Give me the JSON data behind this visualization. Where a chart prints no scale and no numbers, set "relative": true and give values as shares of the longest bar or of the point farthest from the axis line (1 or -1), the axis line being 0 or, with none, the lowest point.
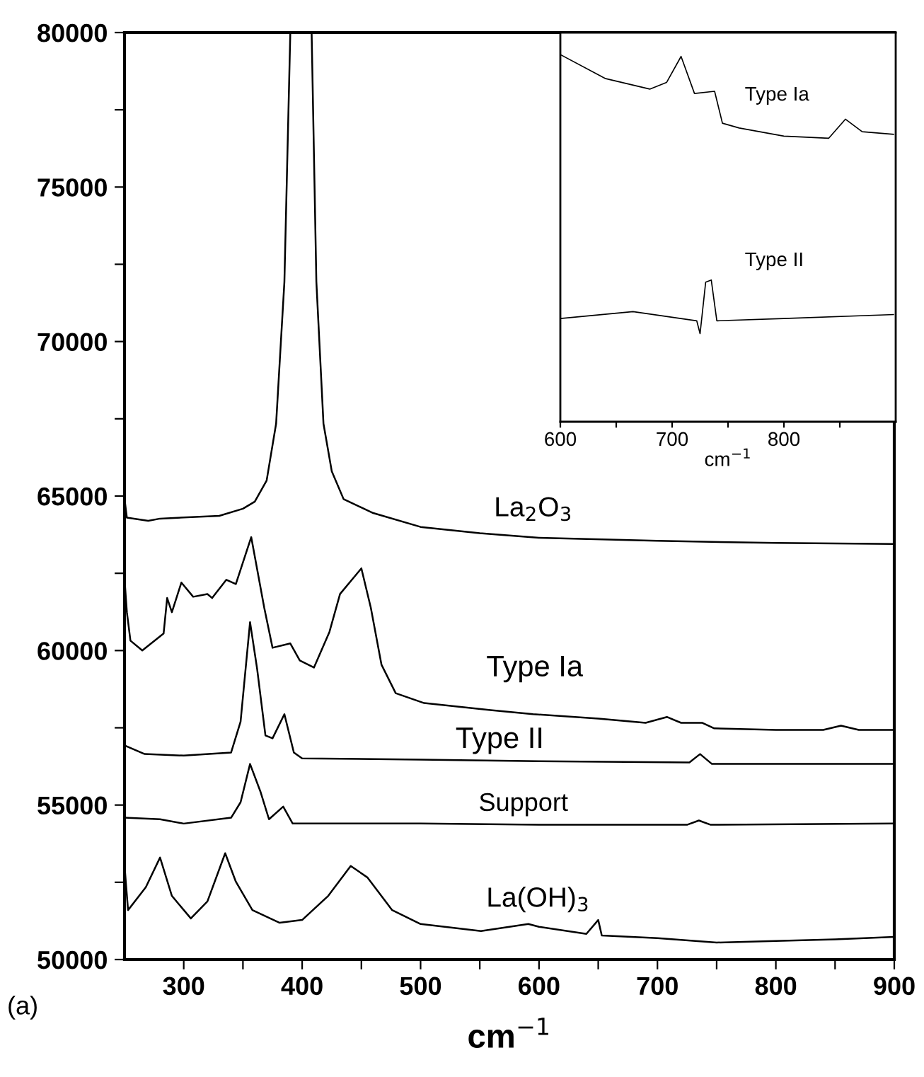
{
  "chart_data": [
    {
      "type": "line",
      "xlabel": "cm$^{−1}$",
      "annotations": [
        "(a)"
      ],
      "xlim": [
        250,
        900
      ],
      "ylim": [
        50000,
        80000
      ],
      "xticks": [
        300,
        {
          "value": 350,
          "label": null
        },
        400,
        {
          "value": 450,
          "label": null
        },
        500,
        {
          "value": 550,
          "label": null
        },
        600,
        {
          "value": 650,
          "label": null
        },
        700,
        {
          "value": 750,
          "label": null
        },
        800,
        {
          "value": 850,
          "label": null
        },
        900
      ],
      "yticks": [
        50000,
        {
          "value": 52500,
          "label": null
        },
        55000,
        {
          "value": 57500,
          "label": null
        },
        60000,
        {
          "value": 62500,
          "label": null
        },
        65000,
        {
          "value": 67500,
          "label": null
        },
        70000,
        {
          "value": 72500,
          "label": null
        },
        75000,
        {
          "value": 77500,
          "label": null
        },
        80000
      ],
      "grid": false,
      "marker": "none",
      "line_style": "solid",
      "series": [
        {
          "name": "La$_{2}$O$_{3}$",
          "color": "#000000",
          "x": [
            250,
            252,
            270,
            280,
            330,
            350,
            360,
            370,
            378,
            385,
            390,
            395,
            403,
            408,
            412,
            418,
            425,
            435,
            460,
            500,
            550,
            600,
            700,
            800,
            900
          ],
          "values": [
            64900,
            64300,
            64200,
            64270,
            64360,
            64590,
            64820,
            65500,
            67340,
            71930,
            80000,
            null,
            null,
            80000,
            71930,
            67340,
            65800,
            64900,
            64450,
            64000,
            63800,
            63650,
            63550,
            63480,
            63450
          ]
        },
        {
          "name": "Type Ia",
          "color": "#000000",
          "x": [
            250,
            252,
            255,
            265,
            283,
            286,
            290,
            298,
            308,
            320,
            324,
            336,
            344,
            357,
            368,
            375,
            390,
            398,
            410,
            423,
            432,
            450,
            458,
            467,
            479,
            503,
            559,
            595,
            650,
            690,
            708,
            720,
            738,
            748,
            800,
            840,
            855,
            870,
            900
          ],
          "values": [
            62300,
            61240,
            60320,
            60000,
            60550,
            61700,
            61240,
            62200,
            61740,
            61830,
            61700,
            62290,
            62150,
            63670,
            61380,
            60090,
            60230,
            59680,
            59450,
            60600,
            61830,
            62660,
            61380,
            59540,
            58620,
            58300,
            58070,
            57940,
            57800,
            57660,
            57850,
            57660,
            57660,
            57480,
            57430,
            57430,
            57570,
            57430,
            57430
          ]
        },
        {
          "name": "Type II",
          "color": "#000000",
          "x": [
            250,
            267,
            300,
            340,
            348,
            356,
            362,
            369,
            375,
            385,
            393,
            400,
            500,
            600,
            727,
            736,
            746,
            900
          ],
          "values": [
            56930,
            56650,
            56600,
            56700,
            57700,
            60920,
            59400,
            57250,
            57160,
            57940,
            56700,
            56510,
            56470,
            56420,
            56380,
            56650,
            56330,
            56330
          ]
        },
        {
          "name": "Support",
          "color": "#000000",
          "x": [
            250,
            280,
            300,
            340,
            348,
            356,
            365,
            372,
            384,
            392,
            500,
            600,
            725,
            735,
            745,
            900
          ],
          "values": [
            54590,
            54540,
            54400,
            54590,
            55090,
            56330,
            55410,
            54540,
            54950,
            54400,
            54400,
            54360,
            54360,
            54500,
            54360,
            54400
          ]
        },
        {
          "name": "La(OH)$_{3}$",
          "color": "#000000",
          "x": [
            250,
            253,
            268,
            280,
            290,
            306,
            320,
            335,
            344,
            358,
            381,
            400,
            422,
            441,
            455,
            476,
            500,
            551,
            591,
            600,
            640,
            650,
            653,
            700,
            750,
            800,
            850,
            900
          ],
          "values": [
            53030,
            51600,
            52340,
            53300,
            52060,
            51330,
            51880,
            53440,
            52520,
            51600,
            51190,
            51280,
            52060,
            53030,
            52660,
            51600,
            51150,
            50920,
            51150,
            51060,
            50830,
            51280,
            50780,
            50690,
            50550,
            50600,
            50650,
            50730
          ]
        }
      ]
    },
    {
      "type": "line",
      "xlabel": "cm$^{−1}$",
      "relative": true,
      "xlim": [
        600,
        900
      ],
      "xticks": [
        600,
        {
          "value": 650,
          "label": null
        },
        700,
        {
          "value": 750,
          "label": null
        },
        800,
        {
          "value": 850,
          "label": null
        }
      ],
      "tick_labels": "x",
      "grid": false,
      "legend": false,
      "marker": "none",
      "line_style": "solid",
      "series": [
        {
          "name": "Type Ia",
          "color": "#000000",
          "x": [
            600,
            640,
            680,
            695,
            708,
            720,
            738,
            745,
            760,
            800,
            840,
            855,
            870,
            898
          ],
          "values": [
            1.0,
            0.935,
            0.906,
            0.924,
            0.995,
            0.894,
            0.9,
            0.813,
            0.8,
            0.778,
            0.772,
            0.824,
            0.79,
            0.783
          ]
        },
        {
          "name": "Type II",
          "color": "#000000",
          "x": [
            600,
            665,
            722,
            725,
            730,
            735,
            740,
            800,
            898
          ],
          "values": [
            0.281,
            0.3,
            0.275,
            0.24,
            0.38,
            0.386,
            0.275,
            0.281,
            0.292
          ]
        }
      ]
    }
  ]
}
